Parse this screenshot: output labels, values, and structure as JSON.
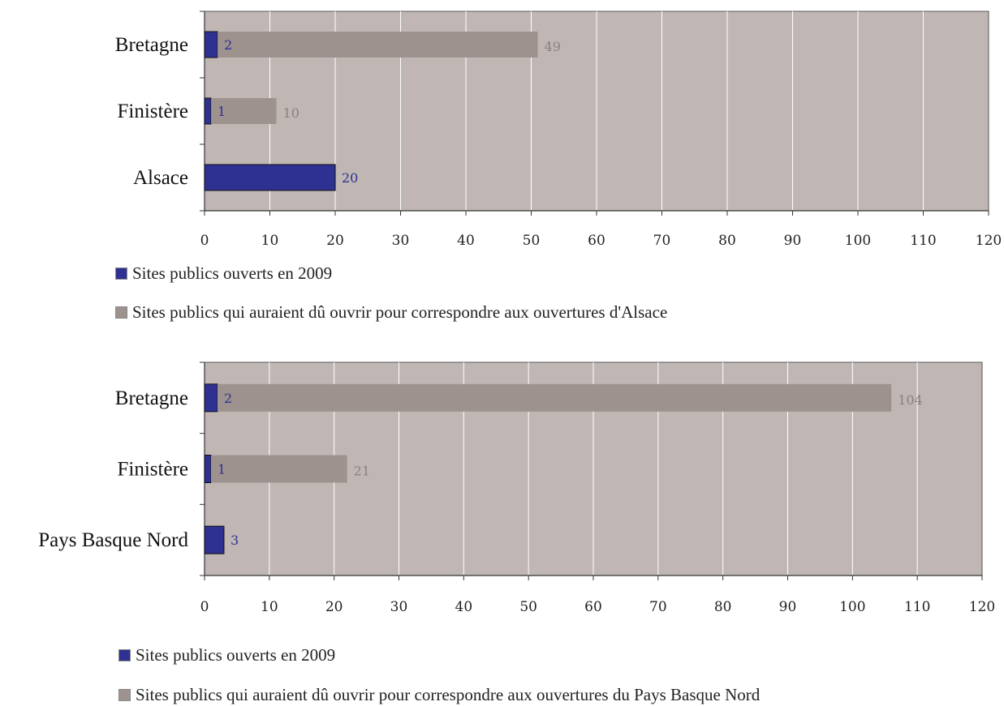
{
  "chart_data": [
    {
      "type": "bar",
      "orientation": "horizontal",
      "stacked": true,
      "categories": [
        "Alsace",
        "Finistère",
        "Bretagne"
      ],
      "series": [
        {
          "name": "Sites publics ouverts en 2009",
          "values": [
            20,
            1,
            2
          ],
          "labels": [
            "20",
            "1",
            "2"
          ],
          "color": "#2e3192"
        },
        {
          "name": "Sites publics qui auraient dû ouvrir pour correspondre aux ouvertures d'Alsace",
          "values": [
            0,
            10,
            49
          ],
          "labels": [
            "",
            "10",
            "49"
          ],
          "color": "#9e928e"
        }
      ],
      "xlim": [
        0,
        120
      ],
      "xticks": [
        "0",
        "10",
        "20",
        "30",
        "40",
        "50",
        "60",
        "70",
        "80",
        "90",
        "100",
        "110",
        "120"
      ],
      "grid": true,
      "plot_background": "#c0b7b5",
      "legend_position": "bottom",
      "title": "",
      "xlabel": "",
      "ylabel": ""
    },
    {
      "type": "bar",
      "orientation": "horizontal",
      "stacked": true,
      "categories": [
        "Pays Basque Nord",
        "Finistère",
        "Bretagne"
      ],
      "series": [
        {
          "name": "Sites publics ouverts en 2009",
          "values": [
            3,
            1,
            2
          ],
          "labels": [
            "3",
            "1",
            "2"
          ],
          "color": "#2e3192"
        },
        {
          "name": "Sites publics qui auraient dû ouvrir pour correspondre aux ouvertures du Pays Basque Nord",
          "values": [
            0,
            21,
            104
          ],
          "labels": [
            "",
            "21",
            "104"
          ],
          "color": "#9e928e"
        }
      ],
      "xlim": [
        0,
        120
      ],
      "xticks": [
        "0",
        "10",
        "20",
        "30",
        "40",
        "50",
        "60",
        "70",
        "80",
        "90",
        "100",
        "110",
        "120"
      ],
      "grid": true,
      "plot_background": "#c0b7b5",
      "legend_position": "bottom",
      "title": "",
      "xlabel": "",
      "ylabel": ""
    }
  ]
}
